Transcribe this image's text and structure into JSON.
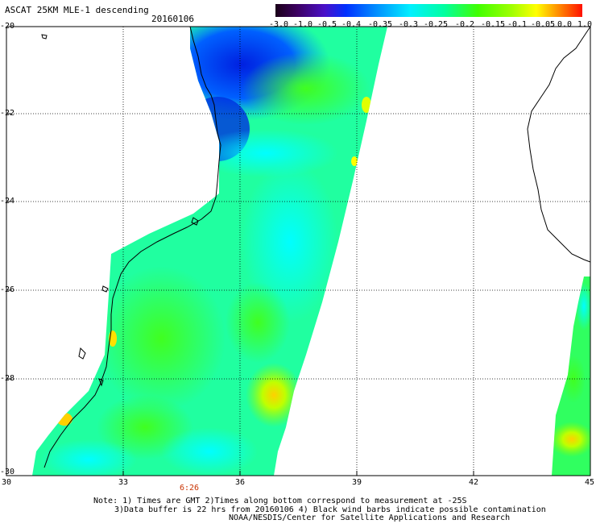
{
  "header": {
    "title": "ASCAT 25KM MLE-1 descending",
    "date": "20160106"
  },
  "colorbar": {
    "labels": [
      "-3.0",
      "-1.0",
      "-0.5",
      "-0.4",
      "-0.35",
      "-0.3",
      "-0.25",
      "-0.2",
      "-0.15",
      "-0.1",
      "-0.05",
      "0.0",
      "1.0"
    ],
    "colors": [
      "#1a0018",
      "#400060",
      "#5a00a0",
      "#3a20d8",
      "#0040ff",
      "#0080ff",
      "#00c0ff",
      "#00ffff",
      "#00ff90",
      "#40ff00",
      "#90ff00",
      "#e0ff00",
      "#ffff00",
      "#ffc000",
      "#ff8000",
      "#ff3000",
      "#ff0000"
    ]
  },
  "axes": {
    "lat_labels": [
      "-20",
      "-22",
      "-24",
      "-26",
      "-28",
      "-30"
    ],
    "lon_labels": [
      "30",
      "33",
      "36",
      "39",
      "42",
      "45"
    ]
  },
  "time_label": "6:26",
  "notes": {
    "line1": "Note: 1) Times are GMT 2)Times along bottom correspond to measurement at -25S",
    "line2": "3)Data buffer is 22 hrs from 20160106 4) Black wind barbs indicate possible contamination",
    "line3": "NOAA/NESDIS/Center for Satellite Applications and Research"
  }
}
